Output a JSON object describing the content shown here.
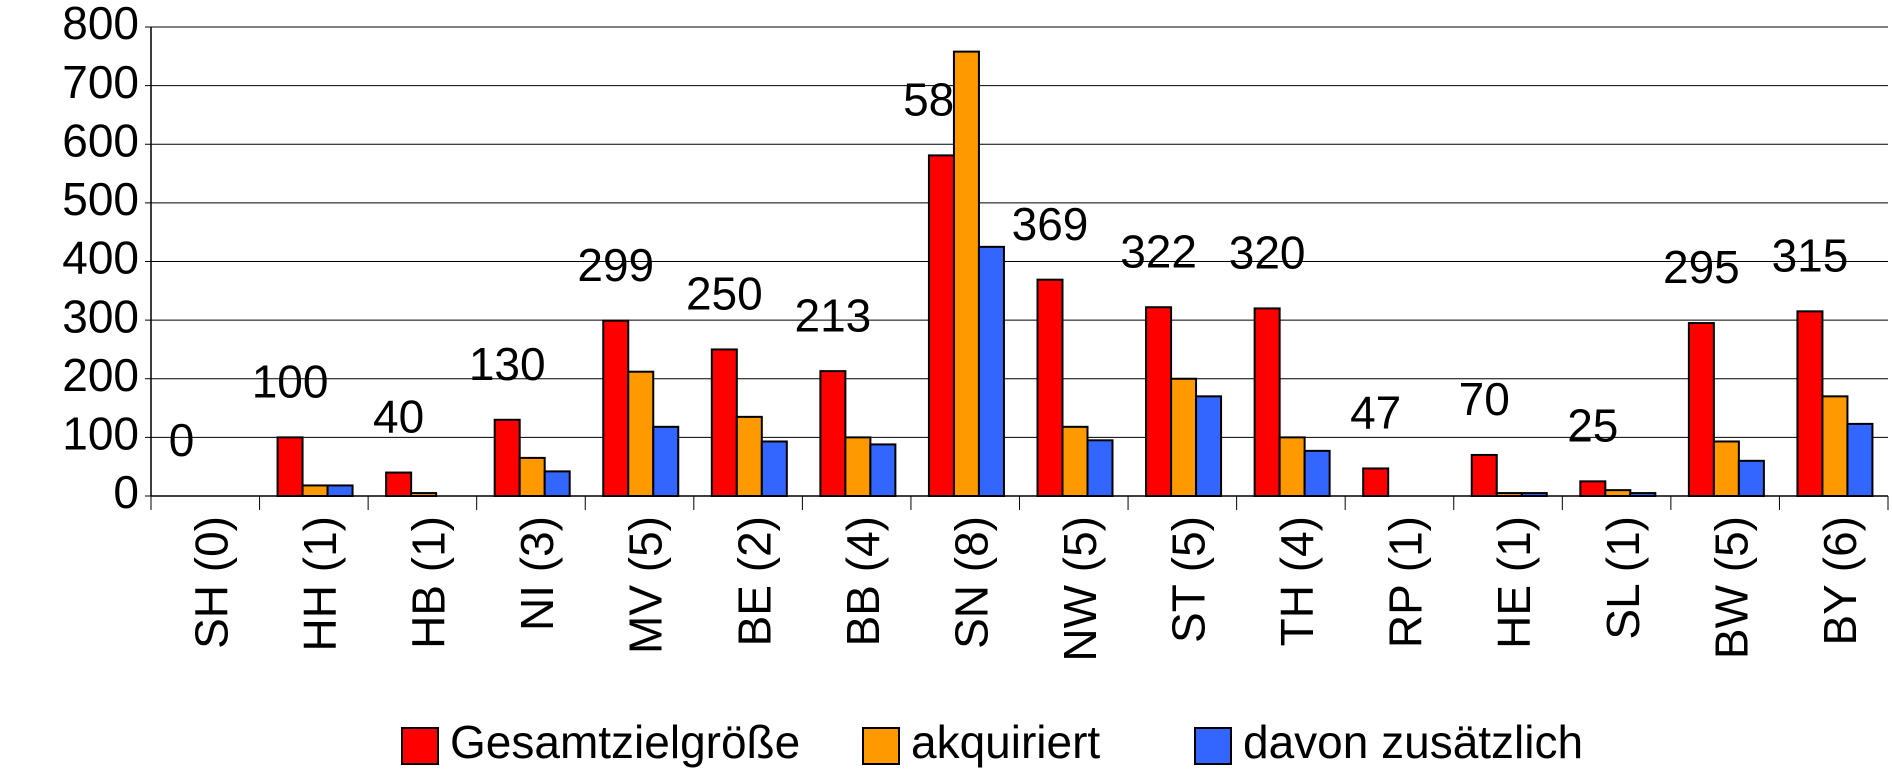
{
  "chart_data": {
    "type": "bar",
    "categories": [
      "SH (0)",
      "HH (1)",
      "HB (1)",
      "NI (3)",
      "MV (5)",
      "BE (2)",
      "BB (4)",
      "SN (8)",
      "NW (5)",
      "ST (5)",
      "TH (4)",
      "RP (1)",
      "HE (1)",
      "SL (1)",
      "BW (5)",
      "BY (6)"
    ],
    "series": [
      {
        "name": "Gesamtzielgröße",
        "color": "#ff0000",
        "values": [
          0,
          100,
          40,
          130,
          299,
          250,
          213,
          581,
          369,
          322,
          320,
          47,
          70,
          25,
          295,
          315
        ]
      },
      {
        "name": "akquiriert",
        "color": "#ff9900",
        "values": [
          0,
          18,
          5,
          65,
          212,
          135,
          100,
          758,
          118,
          200,
          100,
          0,
          5,
          10,
          93,
          170
        ]
      },
      {
        "name": "davon zusätzlich",
        "color": "#3366ff",
        "values": [
          0,
          18,
          0,
          42,
          118,
          93,
          88,
          425,
          95,
          170,
          77,
          0,
          5,
          5,
          60,
          123
        ]
      }
    ],
    "ylim": [
      0,
      800
    ],
    "yticks": [
      0,
      100,
      200,
      300,
      400,
      500,
      600,
      700,
      800
    ],
    "grid": true,
    "legend": "bottom"
  }
}
